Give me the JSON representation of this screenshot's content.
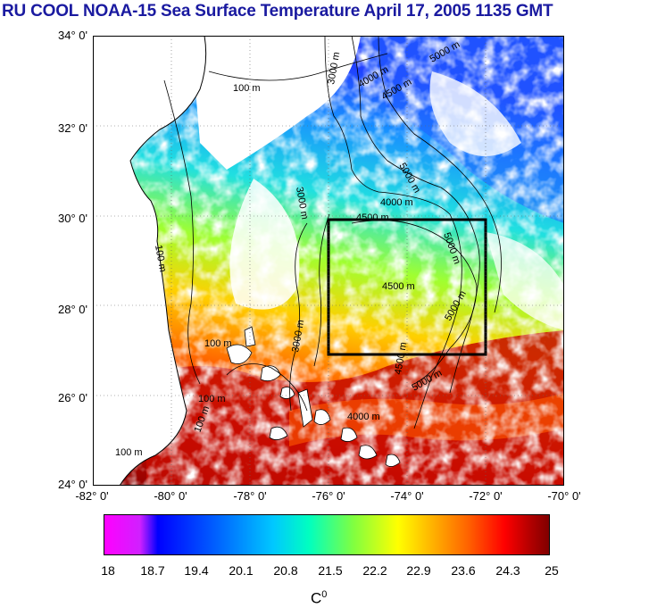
{
  "title": "RU COOL  NOAA-15 Sea Surface Temperature April 17, 2005 1135 GMT",
  "y_ticks": [
    "34° 0'",
    "32° 0'",
    "30° 0'",
    "28° 0'",
    "26° 0'",
    "24° 0'"
  ],
  "x_ticks": [
    "-82° 0'",
    "-80° 0'",
    "-78° 0'",
    "-76° 0'",
    "-74° 0'",
    "-72° 0'",
    "-70° 0'"
  ],
  "depth_labels": [
    "100 m",
    "100 m",
    "100 m",
    "100 m",
    "100 m",
    "100 m",
    "3000 m",
    "3000 m",
    "3000 m",
    "4000 m",
    "4000 m",
    "4000 m",
    "4500 m",
    "4500 m",
    "4500 m",
    "4500 m",
    "5000 m",
    "5000 m",
    "5000 m",
    "5000 m",
    "5000 m"
  ],
  "colorbar": {
    "ticks": [
      "18",
      "18.7",
      "19.4",
      "20.1",
      "20.8",
      "21.5",
      "22.2",
      "22.9",
      "23.6",
      "24.3",
      "25"
    ],
    "unit": "C",
    "unit_sup": "0",
    "min": 18,
    "max": 25
  },
  "region_box": {
    "lon_min": -76,
    "lon_max": -72,
    "lat_min": 27,
    "lat_max": 30
  },
  "map_extent": {
    "lon_min": -82,
    "lon_max": -70,
    "lat_min": 24,
    "lat_max": 34
  },
  "colors": {
    "title": "#1a1aa0",
    "coast": "#000000",
    "land": "#ffffff",
    "box": "#000000"
  }
}
